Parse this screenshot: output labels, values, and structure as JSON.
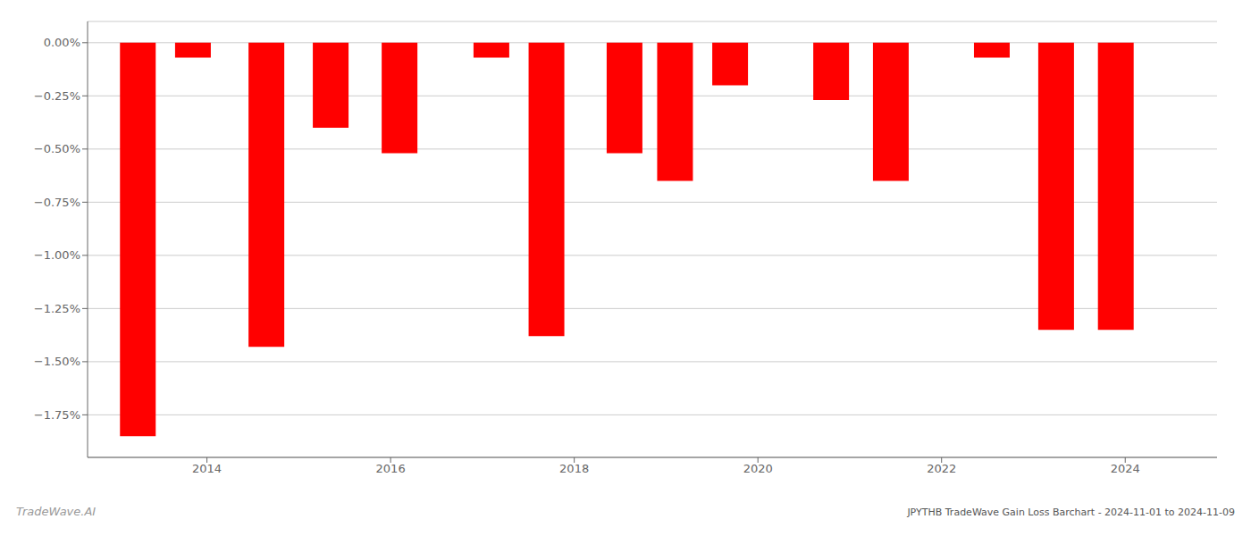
{
  "chart_data": {
    "type": "bar",
    "title": "JPYTHB TradeWave Gain Loss Barchart - 2024-11-01 to 2024-11-09",
    "annotations": [
      "TradeWave.AI"
    ],
    "x": [
      2013.25,
      2013.85,
      2014.65,
      2015.35,
      2016.1,
      2017.1,
      2017.7,
      2018.55,
      2019.1,
      2019.7,
      2020.8,
      2021.45,
      2022.55,
      2023.25,
      2023.9
    ],
    "values": [
      -1.85,
      -0.07,
      -1.43,
      -0.4,
      -0.52,
      -0.07,
      -1.38,
      -0.52,
      -0.65,
      -0.2,
      -0.27,
      -0.65,
      -0.07,
      -1.35,
      -1.35
    ],
    "color": "#ff0000",
    "ylim": [
      -1.95,
      0.1
    ],
    "yticks": [
      {
        "value": 0.0,
        "label": "0.00%"
      },
      {
        "value": -0.25,
        "label": "−0.25%"
      },
      {
        "value": -0.5,
        "label": "−0.50%"
      },
      {
        "value": -0.75,
        "label": "−0.75%"
      },
      {
        "value": -1.0,
        "label": "−1.00%"
      },
      {
        "value": -1.25,
        "label": "−1.25%"
      },
      {
        "value": -1.5,
        "label": "−1.50%"
      },
      {
        "value": -1.75,
        "label": "−1.75%"
      }
    ],
    "xlim": [
      2012.7,
      2025.0
    ],
    "xticks": [
      2014,
      2016,
      2018,
      2020,
      2022,
      2024
    ],
    "grid": true
  }
}
